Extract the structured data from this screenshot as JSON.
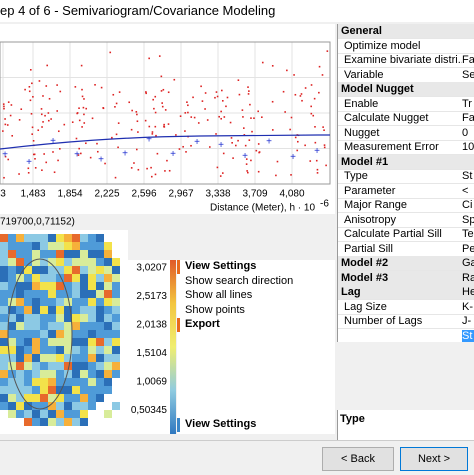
{
  "window": {
    "title": "ep 4 of 6 - Semivariogram/Covariance Modeling"
  },
  "semivariogram": {
    "x_tick_labels": [
      "3",
      "1,483",
      "1,854",
      "2,225",
      "2,596",
      "2,967",
      "3,338",
      "3,709",
      "4,080"
    ],
    "x_axis_label": "Distance (Meter), h · 10",
    "x_axis_exponent": "-6"
  },
  "map": {
    "coordinates": "719700,0,71152)",
    "legend": [
      "3,0207",
      "2,5173",
      "2,0138",
      "1,5104",
      "1,0069",
      "0,50345"
    ]
  },
  "menu": [
    {
      "label": "View Settings",
      "header": true
    },
    {
      "label": "Show search direction"
    },
    {
      "label": "Show all lines"
    },
    {
      "label": "Show points"
    },
    {
      "label": "Export",
      "header": true
    }
  ],
  "menu_bottom": "View Settings",
  "properties": [
    {
      "label": "General",
      "header": true
    },
    {
      "label": "Optimize model"
    },
    {
      "label": "Examine bivariate distri...",
      "value": "Fa"
    },
    {
      "label": "Variable",
      "value": "Se"
    },
    {
      "label": "Model Nugget",
      "header": true
    },
    {
      "label": "Enable",
      "value": "Tr"
    },
    {
      "label": "Calculate Nugget",
      "value": "Fa"
    },
    {
      "label": "Nugget",
      "value": "0"
    },
    {
      "label": "Measurement Error",
      "value": "10"
    },
    {
      "label": "Model #1",
      "header": true
    },
    {
      "label": "Type",
      "value": "St"
    },
    {
      "label": "Parameter",
      "value": "<"
    },
    {
      "label": "Major Range",
      "value": "Ci"
    },
    {
      "label": "Anisotropy",
      "value": "Sp"
    },
    {
      "label": "Calculate Partial Sill",
      "value": "Te"
    },
    {
      "label": "Partial Sill",
      "value": "Pe"
    },
    {
      "label": "Model #2",
      "header": true,
      "value": "Ga"
    },
    {
      "label": "Model #3",
      "header": true,
      "value": "Ra"
    },
    {
      "label": "Lag",
      "header": true,
      "value": "He"
    },
    {
      "label": "Lag Size",
      "value": "K-"
    },
    {
      "label": "Number of Lags",
      "value": "J-"
    },
    {
      "label": "",
      "value": "St",
      "selected": true
    }
  ],
  "description": {
    "title": "Type"
  },
  "buttons": {
    "back": "< Back",
    "next": "Next >"
  }
}
